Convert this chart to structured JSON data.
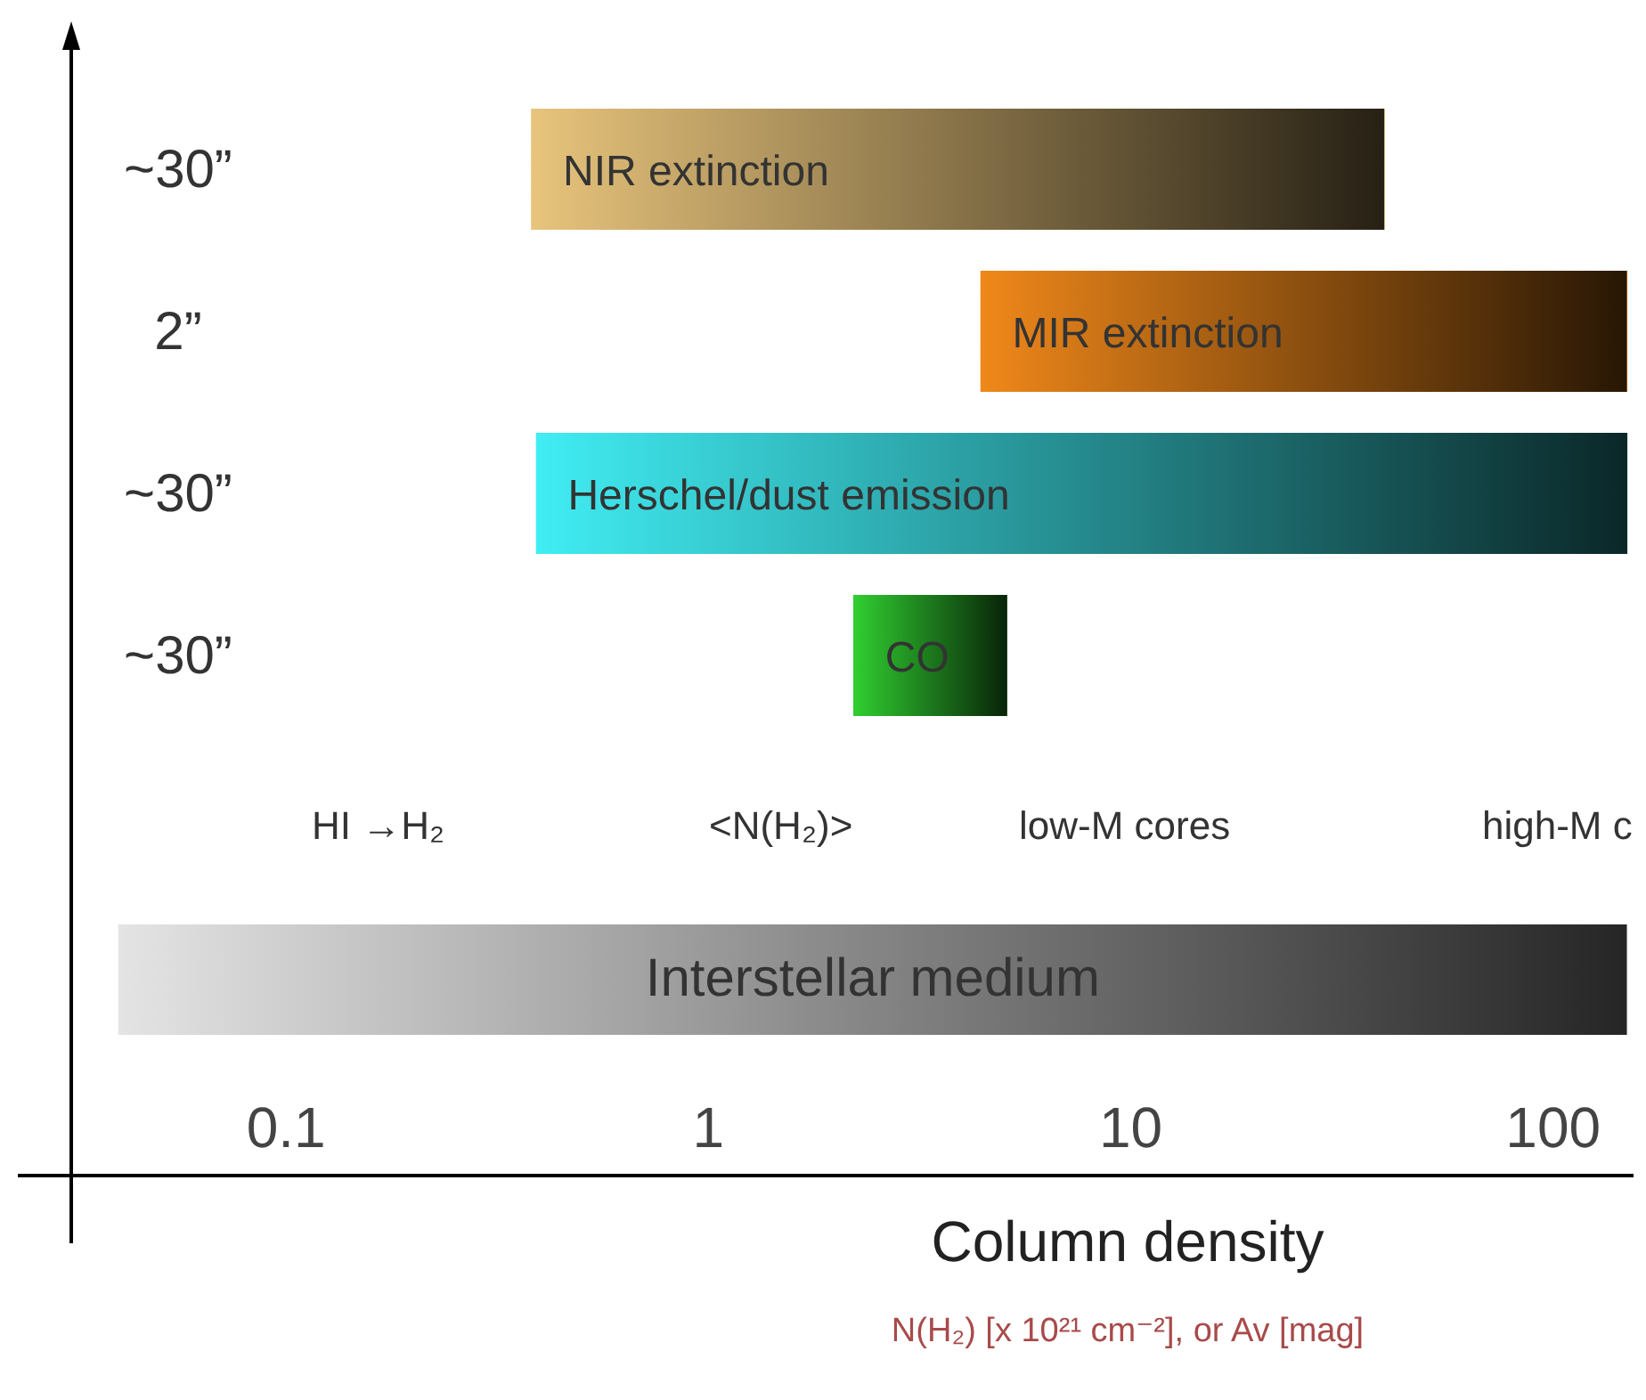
{
  "chart_data": {
    "type": "bar",
    "orientation": "horizontal",
    "log": "x",
    "xlabel": "Column density",
    "categories": [
      "~30”",
      "2”",
      "~30”",
      "~30”",
      null,
      null
    ],
    "base": [
      0.38,
      4.4,
      0.39,
      2.2,
      null,
      0.04
    ],
    "values": [
      39.6,
      145.6,
      149.6,
      2.9,
      null,
      149.96
    ],
    "colors": [
      "#e8c47c",
      "#f0881a",
      "#40eef4",
      "#30d030",
      null,
      "#e4e4e4"
    ],
    "xlim": [
      0.031,
      155
    ],
    "xticks": [
      0.1,
      1,
      10,
      100
    ],
    "annotations": [
      "NIR extinction",
      "MIR extinction",
      "Herschel/dust emission",
      "CO",
      "Interstellar medium",
      "HI →H₂",
      "<N(H₂)>",
      "low-M cores",
      "high-M c",
      "N(H₂) [x 10²¹ cm⁻²], or Av [mag]"
    ]
  }
}
